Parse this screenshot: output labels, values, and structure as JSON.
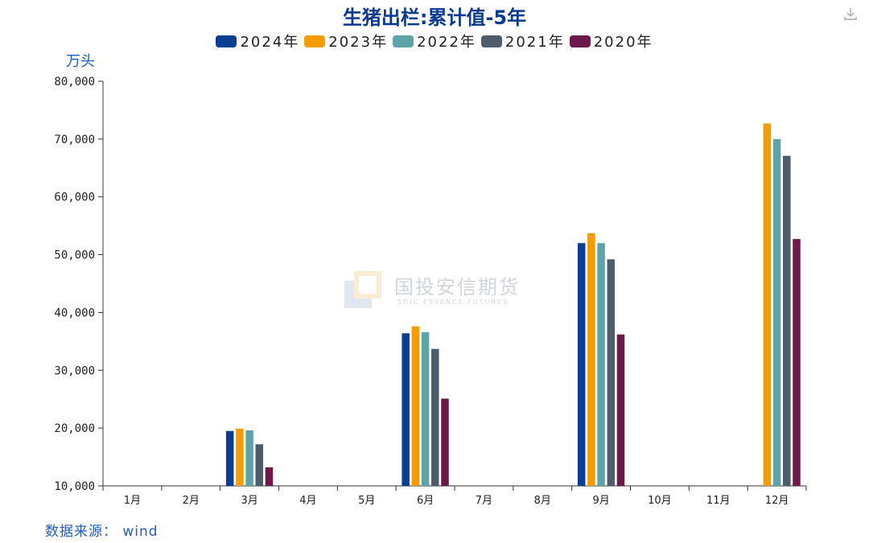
{
  "title": "生猪出栏:累计值-5年",
  "unit": "万头",
  "source": "数据来源： wind",
  "watermark": {
    "name": "国投安信期货",
    "sub": "SDIC ESSENCE FUTURES"
  },
  "chart_data": {
    "type": "bar",
    "title": "生猪出栏:累计值-5年",
    "ylabel": "万头",
    "xlabel": "",
    "ylim": [
      10000,
      80000
    ],
    "y_ticks": [
      "10,000",
      "20,000",
      "30,000",
      "40,000",
      "50,000",
      "60,000",
      "70,000",
      "80,000"
    ],
    "categories": [
      "1月",
      "2月",
      "3月",
      "4月",
      "5月",
      "6月",
      "7月",
      "8月",
      "9月",
      "10月",
      "11月",
      "12月"
    ],
    "legend_position": "top",
    "grid": false,
    "series": [
      {
        "name": "2024年",
        "color": "#0b3d91",
        "values": [
          null,
          null,
          19500,
          null,
          null,
          36400,
          null,
          null,
          52000,
          null,
          null,
          null
        ]
      },
      {
        "name": "2023年",
        "color": "#f59c00",
        "values": [
          null,
          null,
          19900,
          null,
          null,
          37600,
          null,
          null,
          53700,
          null,
          null,
          72700
        ]
      },
      {
        "name": "2022年",
        "color": "#5fa3a8",
        "values": [
          null,
          null,
          19600,
          null,
          null,
          36600,
          null,
          null,
          52000,
          null,
          null,
          70000
        ]
      },
      {
        "name": "2021年",
        "color": "#4f5d6b",
        "values": [
          null,
          null,
          17200,
          null,
          null,
          33700,
          null,
          null,
          49200,
          null,
          null,
          67100
        ]
      },
      {
        "name": "2020年",
        "color": "#6b1a4a",
        "values": [
          null,
          null,
          13200,
          null,
          null,
          25100,
          null,
          null,
          36200,
          null,
          null,
          52700
        ]
      }
    ]
  }
}
